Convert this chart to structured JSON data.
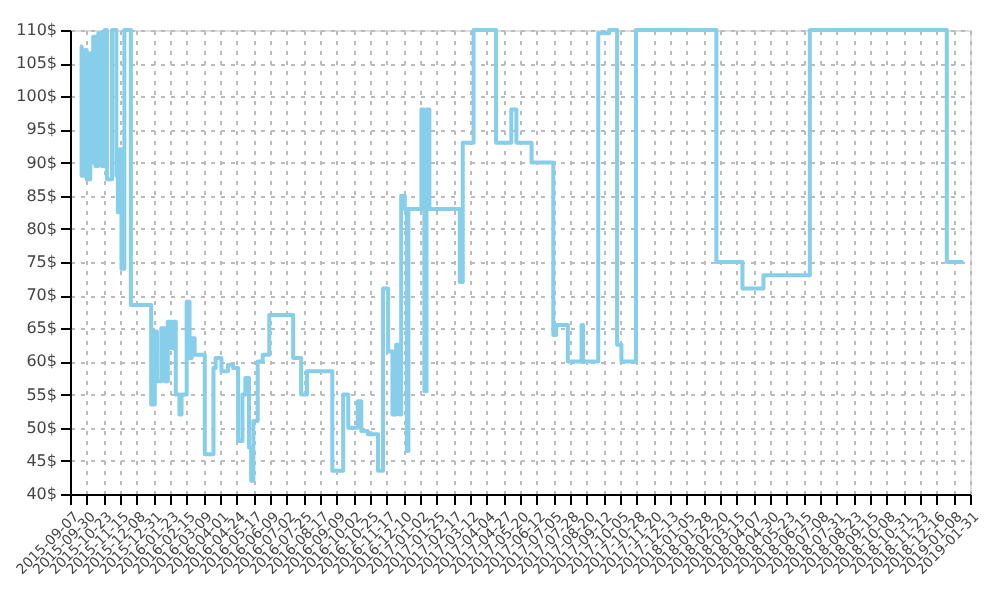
{
  "chart_data": {
    "type": "step",
    "line_style": "solid",
    "marker": "none",
    "grid": true,
    "xlim": [
      "2015-09-07",
      "2019-01-31"
    ],
    "ylim": [
      40,
      110
    ],
    "yticks": [
      {
        "value": 40,
        "label": "40$"
      },
      {
        "value": 45,
        "label": "45$"
      },
      {
        "value": 50,
        "label": "50$"
      },
      {
        "value": 55,
        "label": "55$"
      },
      {
        "value": 60,
        "label": "60$"
      },
      {
        "value": 65,
        "label": "65$"
      },
      {
        "value": 70,
        "label": "70$"
      },
      {
        "value": 75,
        "label": "75$"
      },
      {
        "value": 80,
        "label": "80$"
      },
      {
        "value": 85,
        "label": "85$"
      },
      {
        "value": 90,
        "label": "90$"
      },
      {
        "value": 95,
        "label": "95$"
      },
      {
        "value": 100,
        "label": "100$"
      },
      {
        "value": 105,
        "label": "105$"
      },
      {
        "value": 110,
        "label": "110$"
      }
    ],
    "xticks": [
      "2015-09-07",
      "2015-09-30",
      "2015-10-23",
      "2015-11-15",
      "2015-12-08",
      "2015-12-31",
      "2016-01-23",
      "2016-02-15",
      "2016-03-09",
      "2016-04-01",
      "2016-04-24",
      "2016-05-17",
      "2016-06-09",
      "2016-07-02",
      "2016-07-25",
      "2016-08-17",
      "2016-09-09",
      "2016-10-02",
      "2016-10-25",
      "2016-11-17",
      "2016-12-10",
      "2017-01-02",
      "2017-01-25",
      "2017-02-17",
      "2017-03-12",
      "2017-04-04",
      "2017-04-27",
      "2017-05-20",
      "2017-06-12",
      "2017-07-05",
      "2017-07-28",
      "2017-08-20",
      "2017-09-12",
      "2017-10-05",
      "2017-10-28",
      "2017-11-20",
      "2017-12-13",
      "2018-01-05",
      "2018-01-28",
      "2018-02-20",
      "2018-03-15",
      "2018-04-07",
      "2018-04-30",
      "2018-05-23",
      "2018-06-15",
      "2018-07-08",
      "2018-07-31",
      "2018-08-23",
      "2018-09-15",
      "2018-10-08",
      "2018-10-31",
      "2018-11-23",
      "2018-12-16",
      "2019-01-08",
      "2019-01-31"
    ],
    "x": [
      "2015-09-21",
      "2015-09-23",
      "2015-09-28",
      "2015-09-30",
      "2015-10-05",
      "2015-10-08",
      "2015-10-09",
      "2015-10-12",
      "2015-10-16",
      "2015-10-21",
      "2015-10-25",
      "2015-10-28",
      "2015-11-04",
      "2015-11-10",
      "2015-11-12",
      "2015-11-15",
      "2015-11-17",
      "2015-11-21",
      "2015-11-30",
      "2015-12-28",
      "2016-01-02",
      "2016-01-05",
      "2016-01-11",
      "2016-01-16",
      "2016-01-20",
      "2016-01-25",
      "2016-01-28",
      "2016-01-31",
      "2016-02-05",
      "2016-02-08",
      "2016-02-15",
      "2016-02-19",
      "2016-02-22",
      "2016-02-26",
      "2016-03-11",
      "2016-03-23",
      "2016-03-26",
      "2016-04-03",
      "2016-04-12",
      "2016-04-19",
      "2016-04-26",
      "2016-05-02",
      "2016-05-06",
      "2016-05-11",
      "2016-05-14",
      "2016-05-17",
      "2016-05-23",
      "2016-05-30",
      "2016-06-08",
      "2016-07-11",
      "2016-07-22",
      "2016-07-30",
      "2016-09-03",
      "2016-09-18",
      "2016-09-25",
      "2016-10-08",
      "2016-10-13",
      "2016-10-22",
      "2016-11-05",
      "2016-11-12",
      "2016-11-19",
      "2016-11-25",
      "2016-11-30",
      "2016-12-05",
      "2016-12-07",
      "2016-12-12",
      "2016-12-15",
      "2016-12-17",
      "2017-01-04",
      "2017-01-07",
      "2017-01-08",
      "2017-01-11",
      "2017-01-15",
      "2017-02-26",
      "2017-03-02",
      "2017-03-17",
      "2017-04-17",
      "2017-05-08",
      "2017-05-15",
      "2017-06-05",
      "2017-07-05",
      "2017-07-09",
      "2017-07-25",
      "2017-08-13",
      "2017-08-15",
      "2017-09-05",
      "2017-09-20",
      "2017-10-01",
      "2017-10-07",
      "2017-10-27",
      "2018-02-15",
      "2018-03-23",
      "2018-04-21",
      "2018-06-24",
      "2018-12-30",
      "2019-01-22"
    ],
    "series": [
      {
        "color": "#87ceeb",
        "values": [
          107.5,
          88,
          107,
          87.5,
          106.5,
          90,
          109,
          89.5,
          109.5,
          89.5,
          110,
          87.5,
          110,
          88,
          82.5,
          92,
          74,
          110,
          68.5,
          53.5,
          64.5,
          57,
          65,
          57,
          66,
          62,
          66,
          55,
          52,
          55,
          69,
          60.5,
          63.5,
          61,
          46,
          59,
          60.5,
          58.5,
          59.5,
          59,
          48,
          55,
          57.5,
          47,
          42,
          51,
          60,
          61,
          67,
          60.5,
          55,
          58.5,
          43.5,
          55,
          50,
          54,
          49.5,
          49,
          43.5,
          71,
          61.5,
          52,
          62.5,
          52,
          85,
          83,
          46.5,
          83,
          98,
          83,
          55.5,
          98,
          83,
          72,
          93,
          110,
          93,
          98,
          93,
          90,
          64,
          65.5,
          60,
          65.5,
          60,
          109.5,
          110,
          62.5,
          60,
          110,
          75,
          71,
          73,
          110,
          75,
          75
        ]
      }
    ]
  }
}
